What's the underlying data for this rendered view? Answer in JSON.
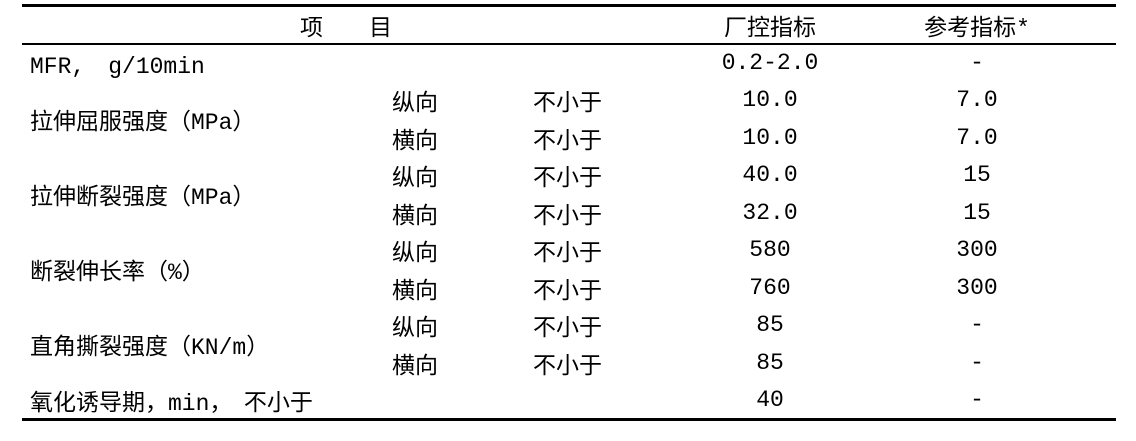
{
  "header": {
    "item": "项　　目",
    "factory": "厂控指标",
    "reference": "参考指标*"
  },
  "rows": {
    "mfr": {
      "item": "MFR,　g/10min",
      "factory": "0.2-2.0",
      "reference": "-"
    },
    "yield": {
      "item": "拉伸屈服强度（MPa）",
      "r1": {
        "dir": "纵向",
        "cond": "不小于",
        "factory": "10.0",
        "reference": "7.0"
      },
      "r2": {
        "dir": "横向",
        "cond": "不小于",
        "factory": "10.0",
        "reference": "7.0"
      }
    },
    "break": {
      "item": "拉伸断裂强度（MPa）",
      "r1": {
        "dir": "纵向",
        "cond": "不小于",
        "factory": "40.0",
        "reference": "15"
      },
      "r2": {
        "dir": "横向",
        "cond": "不小于",
        "factory": "32.0",
        "reference": "15"
      }
    },
    "elong": {
      "item": "断裂伸长率（%）",
      "r1": {
        "dir": "纵向",
        "cond": "不小于",
        "factory": "580",
        "reference": "300"
      },
      "r2": {
        "dir": "横向",
        "cond": "不小于",
        "factory": "760",
        "reference": "300"
      }
    },
    "tear": {
      "item": "直角撕裂强度（KN/m）",
      "r1": {
        "dir": "纵向",
        "cond": "不小于",
        "factory": "85",
        "reference": "-"
      },
      "r2": {
        "dir": "横向",
        "cond": "不小于",
        "factory": "85",
        "reference": "-"
      }
    },
    "oit": {
      "item": "氧化诱导期，min，　不小于",
      "factory": "40",
      "reference": "-"
    }
  }
}
